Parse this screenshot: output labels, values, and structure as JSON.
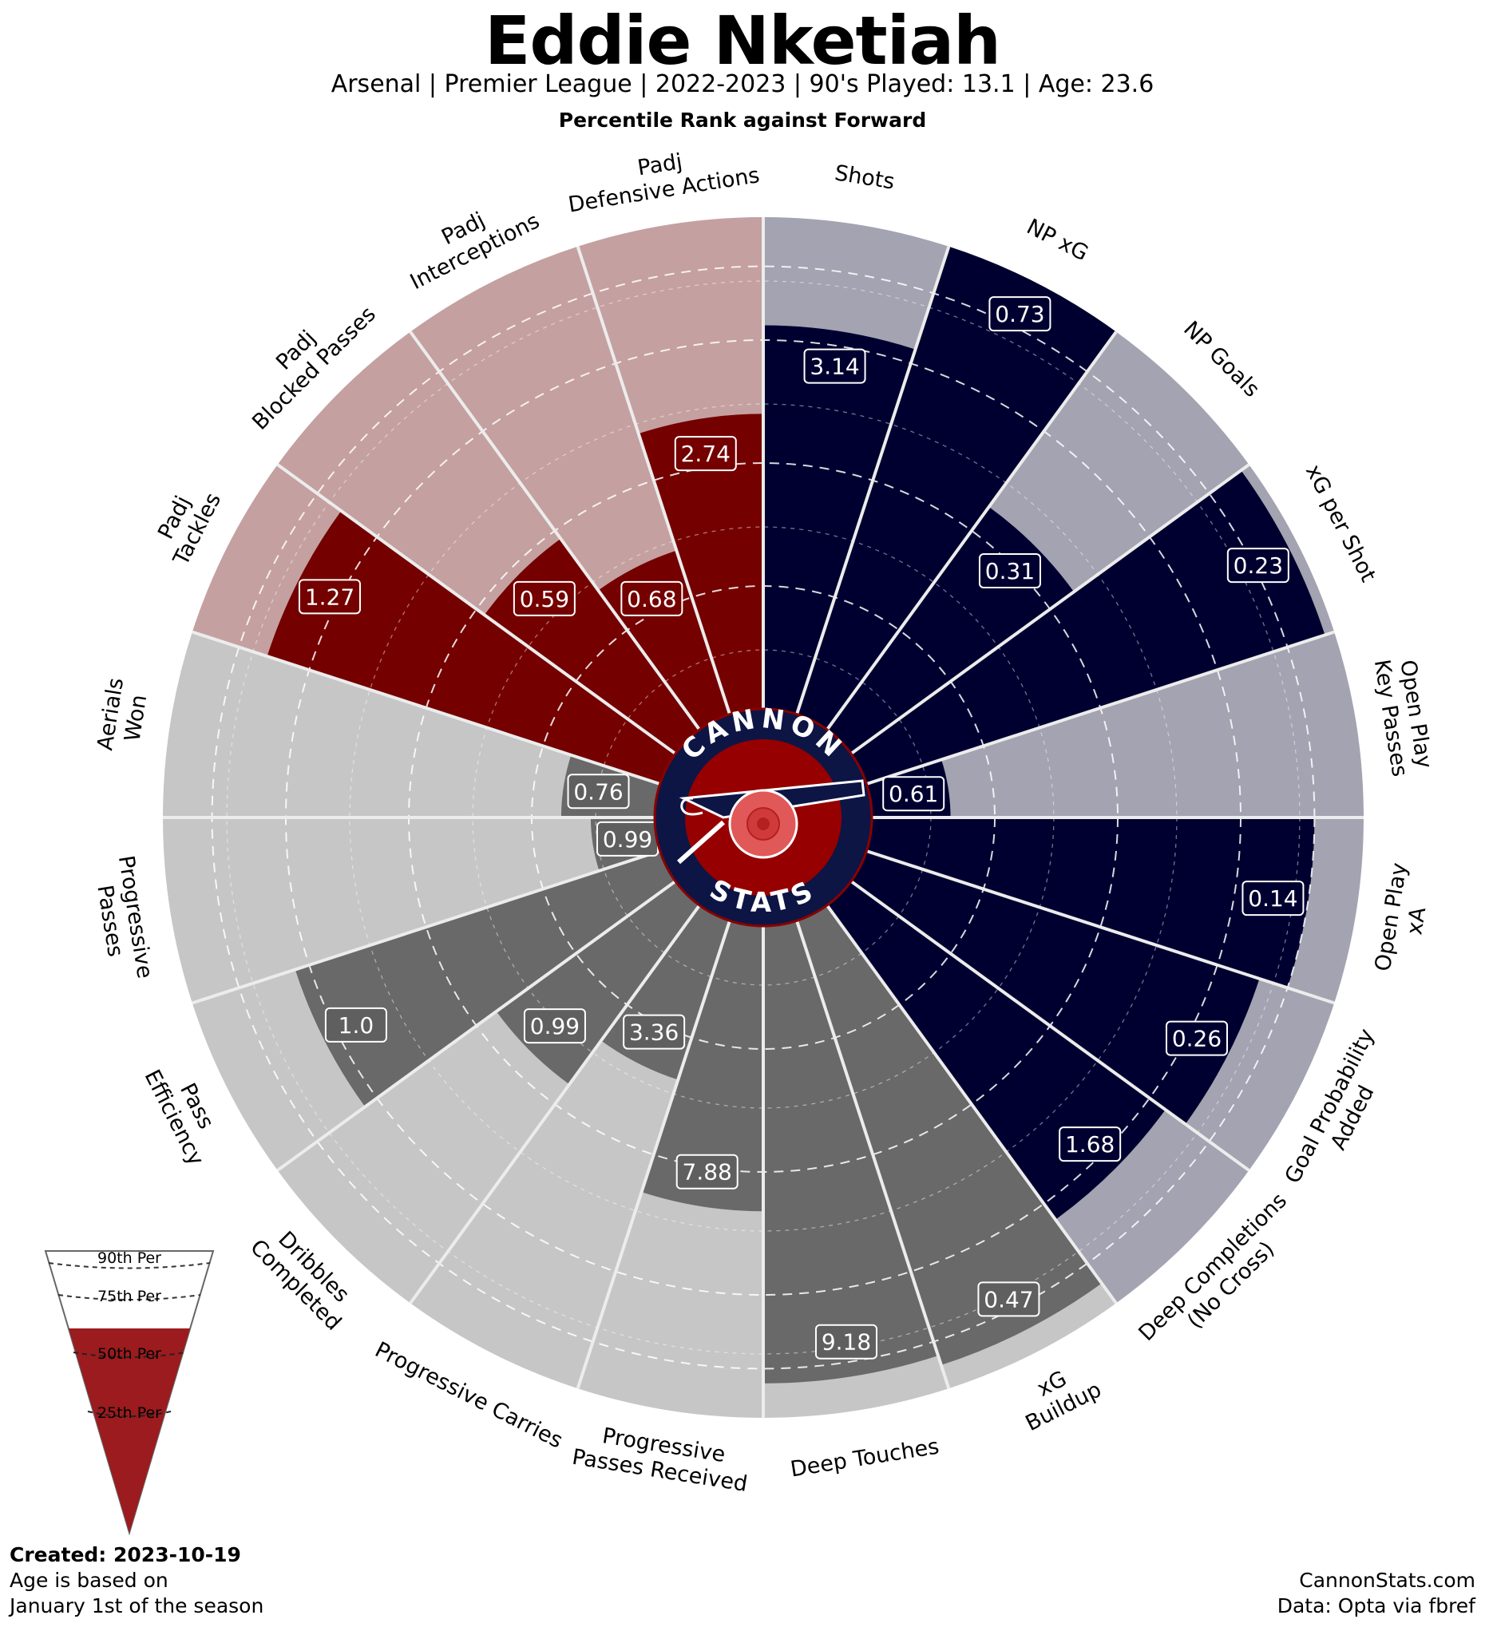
{
  "header": {
    "title": "Eddie Nketiah",
    "subtitle": "Arsenal  | Premier League | 2022-2023 | 90's Played: 13.1 | Age: 23.6",
    "rank_line": "Percentile Rank against Forward"
  },
  "logo": {
    "top_text": "CANNON",
    "bottom_text": "STATS"
  },
  "colors": {
    "attack_dark": "#000030",
    "attack_light": "#a3a3b1",
    "defense_dark": "#740000",
    "defense_light": "#c5a0a0",
    "possession_dark": "#696969",
    "possession_light": "#c6c6c6",
    "logo_red": "#960000",
    "logo_navy": "#0d1545"
  },
  "chart_data": {
    "type": "radial-bar",
    "scale": "percentile",
    "rlim": [
      0,
      100
    ],
    "reference_rings": [
      25,
      50,
      75,
      90
    ],
    "metrics": [
      {
        "label": "Shots",
        "value": "3.14",
        "percentile": 78,
        "group": "attack"
      },
      {
        "label": "NP xG",
        "value": "0.73",
        "percentile": 100,
        "group": "attack"
      },
      {
        "label": "NP Goals",
        "value": "0.31",
        "percentile": 56,
        "group": "attack"
      },
      {
        "label": "xG per Shot",
        "value": "0.23",
        "percentile": 98,
        "group": "attack"
      },
      {
        "label": "Open Play\nKey Passes",
        "value": "0.61",
        "percentile": 16,
        "group": "attack"
      },
      {
        "label": "Open Play\nxA",
        "value": "0.14",
        "percentile": 90,
        "group": "attack"
      },
      {
        "label": "Goal Probability\nAdded",
        "value": "0.26",
        "percentile": 84,
        "group": "attack"
      },
      {
        "label": "Deep Completions\n(No Cross)",
        "value": "1.68",
        "percentile": 79,
        "group": "attack"
      },
      {
        "label": "xG\nBuildup",
        "value": "0.47",
        "percentile": 95,
        "group": "possession"
      },
      {
        "label": "Deep Touches",
        "value": "9.18",
        "percentile": 93,
        "group": "possession"
      },
      {
        "label": "Progressive\nPasses Received",
        "value": "7.88",
        "percentile": 58,
        "group": "possession"
      },
      {
        "label": "Progressive Carries",
        "value": "3.36",
        "percentile": 34,
        "group": "possession"
      },
      {
        "label": "Dribbles\nCompleted",
        "value": "0.99",
        "percentile": 45,
        "group": "possession"
      },
      {
        "label": "Pass\nEfficiency",
        "value": "1.0",
        "percentile": 78,
        "group": "possession"
      },
      {
        "label": "Progressive\nPasses",
        "value": "0.99",
        "percentile": 13,
        "group": "possession"
      },
      {
        "label": "Aerials\nWon",
        "value": "0.76",
        "percentile": 19,
        "group": "possession"
      },
      {
        "label": "Padj\nTackles",
        "value": "1.27",
        "percentile": 84,
        "group": "defense"
      },
      {
        "label": "Padj\nBlocked Passes",
        "value": "0.59",
        "percentile": 48,
        "group": "defense"
      },
      {
        "label": "Padj\nInterceptions",
        "value": "0.68",
        "percentile": 35,
        "group": "defense"
      },
      {
        "label": "Padj\nDefensive Actions",
        "value": "2.74",
        "percentile": 60,
        "group": "defense"
      }
    ]
  },
  "legend": {
    "rings": [
      "90th Per",
      "75th Per",
      "50th Per",
      "25th Per"
    ]
  },
  "footer": {
    "created": "Created: 2023-10-19",
    "note_line1": "Age is based on",
    "note_line2": "January 1st of the season",
    "site": "CannonStats.com",
    "source": "Data: Opta via fbref"
  }
}
